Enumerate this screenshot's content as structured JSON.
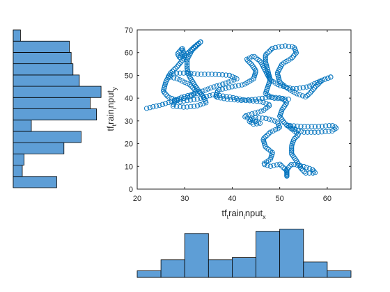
{
  "chart_data": {
    "type": "scatter",
    "marker": "open circle",
    "xlabel": {
      "base": "tf",
      "parts": [
        [
          "t",
          "sub"
        ],
        [
          "rain",
          "base"
        ],
        [
          "i",
          "sub"
        ],
        [
          "nput",
          "base"
        ],
        [
          "x",
          "sub"
        ]
      ]
    },
    "ylabel": {
      "base": "tf",
      "parts": [
        [
          "t",
          "sub"
        ],
        [
          "rain",
          "base"
        ],
        [
          "i",
          "sub"
        ],
        [
          "nput",
          "base"
        ],
        [
          "y",
          "sub"
        ]
      ]
    },
    "xlim": [
      20,
      65
    ],
    "ylim": [
      0,
      70
    ],
    "xticks": [
      20,
      30,
      40,
      50,
      60
    ],
    "yticks": [
      0,
      10,
      20,
      30,
      40,
      50,
      60,
      70
    ],
    "grid": false,
    "colors": {
      "marker": "#0072BD",
      "hist_fill": "#5E9ED6",
      "hist_edge": "#000000",
      "axis": "#262626"
    },
    "path_waypoints": [
      [
        22,
        35.5
      ],
      [
        25,
        37
      ],
      [
        28,
        39
      ],
      [
        31,
        40.5
      ],
      [
        32.5,
        43
      ],
      [
        31,
        46
      ],
      [
        28.5,
        48.5
      ],
      [
        26.5,
        49.5
      ],
      [
        28,
        51
      ],
      [
        31,
        51
      ],
      [
        33,
        50.5
      ],
      [
        36,
        50.5
      ],
      [
        39.5,
        50
      ],
      [
        41,
        48.5
      ],
      [
        38.5,
        46.5
      ],
      [
        35.5,
        44.5
      ],
      [
        32.5,
        42
      ],
      [
        29.5,
        40.5
      ],
      [
        28,
        39
      ],
      [
        27.5,
        36.5
      ],
      [
        30,
        36
      ],
      [
        32.5,
        36.5
      ],
      [
        34.5,
        38
      ],
      [
        34,
        40.5
      ],
      [
        33,
        43
      ],
      [
        32,
        46
      ],
      [
        31,
        49.5
      ],
      [
        30.5,
        53
      ],
      [
        30.5,
        57
      ],
      [
        31.5,
        61
      ],
      [
        33,
        64
      ],
      [
        33.5,
        65
      ],
      [
        32,
        62.5
      ],
      [
        30.5,
        59.5
      ],
      [
        29,
        57.5
      ],
      [
        28.5,
        59.5
      ],
      [
        29.5,
        62
      ],
      [
        30,
        58
      ],
      [
        28.5,
        54
      ],
      [
        27,
        51
      ],
      [
        26,
        47
      ],
      [
        25.5,
        43
      ],
      [
        26.5,
        40.5
      ],
      [
        29,
        38.5
      ],
      [
        32.5,
        39.5
      ],
      [
        36,
        41.5
      ],
      [
        39.5,
        40.5
      ],
      [
        43,
        39
      ],
      [
        46,
        38.5
      ],
      [
        48,
        37
      ],
      [
        46.5,
        34.5
      ],
      [
        44,
        33
      ],
      [
        42.5,
        32
      ],
      [
        44,
        30.5
      ],
      [
        46,
        29
      ],
      [
        44.5,
        28.5
      ],
      [
        43.5,
        30
      ],
      [
        45,
        31.5
      ],
      [
        47.5,
        31
      ],
      [
        49.5,
        29.5
      ],
      [
        50,
        27
      ],
      [
        48,
        25
      ],
      [
        46.5,
        22
      ],
      [
        47,
        18.5
      ],
      [
        48.5,
        16
      ],
      [
        48,
        13
      ],
      [
        46.5,
        11
      ],
      [
        48,
        10
      ],
      [
        50,
        11
      ],
      [
        51.5,
        8
      ],
      [
        51.5,
        5.5
      ],
      [
        51.5,
        8.5
      ],
      [
        52.5,
        11
      ],
      [
        55,
        10
      ],
      [
        57,
        8.5
      ],
      [
        57.5,
        7
      ],
      [
        55.5,
        7
      ],
      [
        54.5,
        9
      ],
      [
        53.5,
        12.5
      ],
      [
        52.5,
        15.5
      ],
      [
        52.5,
        19
      ],
      [
        53,
        22
      ],
      [
        54,
        24
      ],
      [
        52.5,
        26.5
      ],
      [
        51.5,
        28
      ],
      [
        55,
        27.5
      ],
      [
        58,
        27.5
      ],
      [
        61,
        28
      ],
      [
        62,
        27
      ],
      [
        61,
        25.5
      ],
      [
        58,
        25
      ],
      [
        55,
        25
      ],
      [
        53,
        26.5
      ],
      [
        51,
        29
      ],
      [
        50,
        32
      ],
      [
        50.5,
        35
      ],
      [
        51.5,
        38
      ],
      [
        50.5,
        40
      ],
      [
        48,
        40.5
      ],
      [
        45,
        39.5
      ],
      [
        42,
        39
      ],
      [
        39,
        39.5
      ],
      [
        36.5,
        40.5
      ],
      [
        37,
        43.5
      ],
      [
        40,
        45
      ],
      [
        42.5,
        46
      ],
      [
        44.5,
        48.5
      ],
      [
        45,
        52
      ],
      [
        44,
        55
      ],
      [
        43,
        57
      ],
      [
        44.5,
        58.5
      ],
      [
        46,
        56
      ],
      [
        47,
        52
      ],
      [
        48,
        48
      ],
      [
        50,
        45.5
      ],
      [
        53,
        44
      ],
      [
        56,
        45
      ],
      [
        58.5,
        47.5
      ],
      [
        61,
        49.5
      ],
      [
        60.5,
        49
      ],
      [
        59,
        48
      ],
      [
        57.5,
        45
      ],
      [
        56.5,
        42.5
      ],
      [
        55.5,
        40.5
      ],
      [
        53.5,
        42
      ],
      [
        51.5,
        44.5
      ],
      [
        50,
        47
      ],
      [
        49.5,
        51
      ],
      [
        50.5,
        55
      ],
      [
        52.5,
        57.5
      ],
      [
        53.5,
        60
      ],
      [
        53,
        62.5
      ],
      [
        51,
        63
      ],
      [
        48.5,
        62
      ],
      [
        47,
        59
      ],
      [
        47,
        56
      ],
      [
        47.5,
        52
      ],
      [
        48,
        48
      ],
      [
        47.5,
        45
      ],
      [
        47,
        42
      ],
      [
        48.5,
        40
      ],
      [
        52,
        39.5
      ]
    ],
    "x_histogram": {
      "orientation": "vertical",
      "bin_edges": [
        20,
        25,
        30,
        35,
        40,
        45,
        50,
        55,
        60,
        65
      ],
      "counts": [
        6,
        16,
        40,
        16,
        18,
        42,
        44,
        14,
        6
      ],
      "ylim": [
        0,
        50
      ]
    },
    "y_histogram": {
      "orientation": "horizontal",
      "bin_edges": [
        5,
        10,
        15,
        20,
        25,
        30,
        35,
        40,
        45,
        50,
        55,
        60,
        65,
        70,
        75
      ],
      "counts": [
        48,
        10,
        12,
        56,
        75,
        20,
        92,
        85,
        97,
        73,
        66,
        64,
        62,
        8
      ],
      "xlim": [
        0,
        100
      ]
    }
  }
}
